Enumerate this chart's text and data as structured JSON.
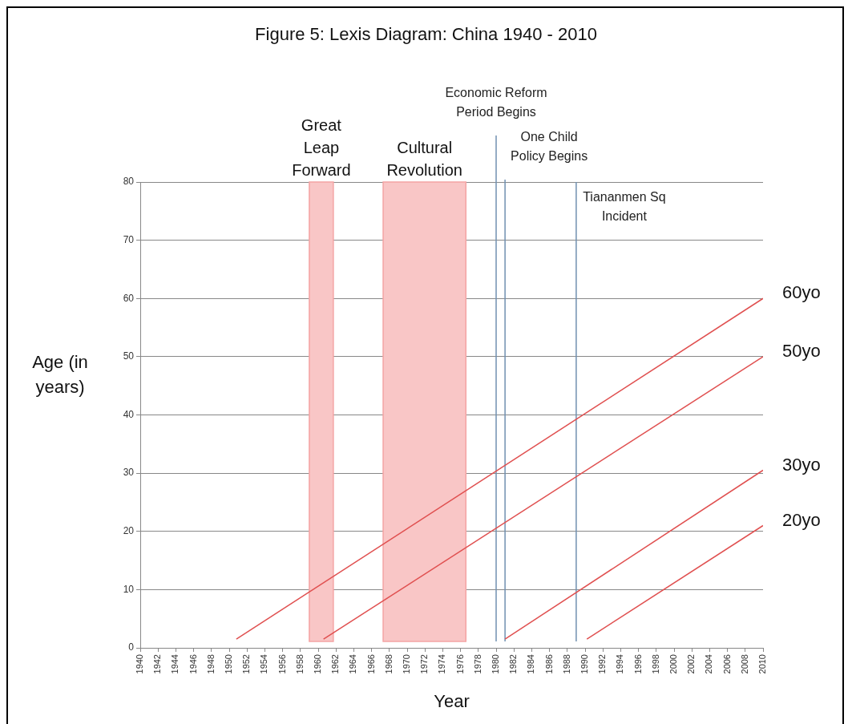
{
  "chart_data": {
    "type": "line",
    "title": "Figure 5: Lexis Diagram: China 1940 - 2010",
    "xlabel": "Year",
    "ylabel": "Age (in years)",
    "xlim": [
      1940,
      2010
    ],
    "xticks": [
      1940,
      1942,
      1944,
      1946,
      1948,
      1950,
      1952,
      1954,
      1956,
      1958,
      1960,
      1962,
      1964,
      1966,
      1968,
      1970,
      1972,
      1974,
      1976,
      1978,
      1980,
      1982,
      1984,
      1986,
      1988,
      1990,
      1992,
      1994,
      1996,
      1998,
      2000,
      2002,
      2004,
      2006,
      2008,
      2010
    ],
    "ylim": [
      0,
      80
    ],
    "yticks": [
      0,
      10,
      20,
      30,
      40,
      50,
      60,
      70,
      80
    ],
    "grid": "y",
    "legend": false,
    "marker": "none",
    "line_style": "solid",
    "series": [
      {
        "name": "60yo",
        "color": "#e05050",
        "x": [
          1950.8,
          2010
        ],
        "values": [
          1.5,
          60
        ]
      },
      {
        "name": "50yo",
        "color": "#e05050",
        "x": [
          1960.6,
          2010
        ],
        "values": [
          1.5,
          50
        ]
      },
      {
        "name": "30yo",
        "color": "#e05050",
        "x": [
          1981,
          2010
        ],
        "values": [
          1.5,
          30.5
        ]
      },
      {
        "name": "20yo",
        "color": "#e05050",
        "x": [
          1990.2,
          2010
        ],
        "values": [
          1.5,
          21
        ]
      }
    ],
    "bands": [
      {
        "axis": "x",
        "from": 1959,
        "to": 1961.7,
        "label": "Great Leap Forward",
        "color": "#f9c6c6"
      },
      {
        "axis": "x",
        "from": 1967.3,
        "to": 1976.6,
        "label": "Cultural Revolution",
        "color": "#f9c6c6"
      }
    ],
    "ref_lines": [
      {
        "axis": "x",
        "value": 1980,
        "label": "Economic Reform Period Begins",
        "color": "#7090b0"
      },
      {
        "axis": "x",
        "value": 1981,
        "label": "One Child Policy Begins",
        "color": "#7090b0"
      },
      {
        "axis": "x",
        "value": 1989,
        "label": "Tiananmen Sq Incident",
        "color": "#7090b0"
      }
    ]
  }
}
